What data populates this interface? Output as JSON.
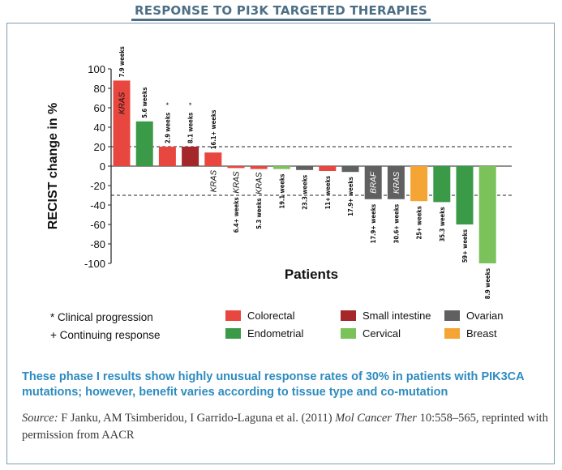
{
  "header": {
    "title": "RESPONSE TO PI3K TARGETED THERAPIES"
  },
  "caption": "These phase I results show highly unusual response rates of 30% in patients with PIK3CA mutations; however, benefit varies according to tissue type and co-mutation",
  "source": {
    "label": "Source:",
    "authors": "F Janku, AM Tsimberidou, I Garrido-Laguna et al. (2011)",
    "journal": "Mol Cancer Ther",
    "rest": "10:558–565, reprinted with permission from AACR"
  },
  "chart_data": {
    "type": "bar",
    "title": "",
    "xlabel": "Patients",
    "ylabel": "RECIST change in %",
    "ylim": [
      -100,
      100
    ],
    "yticks": [
      100,
      80,
      60,
      40,
      20,
      0,
      -20,
      -40,
      -60,
      -80,
      -100
    ],
    "reference_lines": [
      20,
      -30
    ],
    "grid": false,
    "legend_position": "bottom",
    "legend": [
      {
        "name": "Colorectal",
        "color": "#e8473f"
      },
      {
        "name": "Small intestine",
        "color": "#a4272a"
      },
      {
        "name": "Ovarian",
        "color": "#606060"
      },
      {
        "name": "Endometrial",
        "color": "#3a9a48"
      },
      {
        "name": "Cervical",
        "color": "#7cc25a"
      },
      {
        "name": "Breast",
        "color": "#f4a533"
      }
    ],
    "notes": [
      "* Clinical progression",
      "+ Continuing response"
    ],
    "bars": [
      {
        "value": 88,
        "color": "#e8473f",
        "weeks": "7.9 weeks",
        "label": "KRAS",
        "marker": ""
      },
      {
        "value": 46,
        "color": "#3a9a48",
        "weeks": "5.6 weeks",
        "label": "",
        "marker": ""
      },
      {
        "value": 20,
        "color": "#e8473f",
        "weeks": "2.9 weeks",
        "label": "",
        "marker": "*"
      },
      {
        "value": 20,
        "color": "#a4272a",
        "weeks": "8.1 weeks",
        "label": "",
        "marker": "*"
      },
      {
        "value": 14,
        "color": "#e8473f",
        "weeks": "16.1+ weeks",
        "label": "KRAS",
        "marker": ""
      },
      {
        "value": -2,
        "color": "#e8473f",
        "weeks": "6.4+ weeks",
        "label": "KRAS",
        "marker": ""
      },
      {
        "value": -3,
        "color": "#e8473f",
        "weeks": "5.3 weeks",
        "label": "KRAS",
        "marker": ""
      },
      {
        "value": -3,
        "color": "#7cc25a",
        "weeks": "19.1 weeks",
        "label": "",
        "marker": ""
      },
      {
        "value": -4,
        "color": "#606060",
        "weeks": "23.3 weeks",
        "label": "",
        "marker": ""
      },
      {
        "value": -5,
        "color": "#e8473f",
        "weeks": "11+ weeks",
        "label": "",
        "marker": ""
      },
      {
        "value": -6,
        "color": "#606060",
        "weeks": "17.9+ weeks",
        "label": "",
        "marker": ""
      },
      {
        "value": -34,
        "color": "#606060",
        "weeks": "17.9+ weeks",
        "label": "BRAF",
        "marker": ""
      },
      {
        "value": -34,
        "color": "#606060",
        "weeks": "30.6+ weeks",
        "label": "KRAS",
        "marker": ""
      },
      {
        "value": -36,
        "color": "#f4a533",
        "weeks": "25+ weeks",
        "label": "",
        "marker": ""
      },
      {
        "value": -37,
        "color": "#3a9a48",
        "weeks": "35.3 weeks",
        "label": "",
        "marker": ""
      },
      {
        "value": -60,
        "color": "#3a9a48",
        "weeks": "59+ weeks",
        "label": "",
        "marker": ""
      },
      {
        "value": -100,
        "color": "#7cc25a",
        "weeks": "8.9 weeks",
        "label": "",
        "marker": ""
      }
    ]
  }
}
